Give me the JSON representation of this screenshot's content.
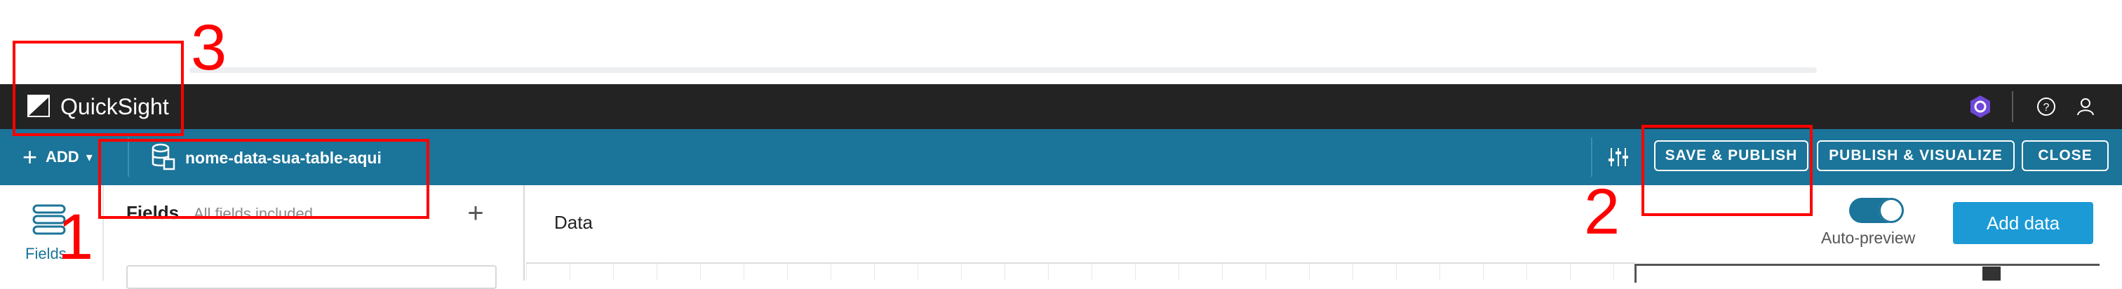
{
  "app": {
    "title": "QuickSight"
  },
  "toolbar": {
    "add_label": "ADD",
    "dataset_name": "nome-data-sua-table-aqui",
    "save_publish": "SAVE & PUBLISH",
    "publish_visualize": "PUBLISH & VISUALIZE",
    "close": "CLOSE"
  },
  "rail": {
    "fields_label": "Fields"
  },
  "fields_panel": {
    "title": "Fields",
    "subtitle": "All fields included"
  },
  "data_area": {
    "title": "Data",
    "auto_preview_label": "Auto-preview",
    "auto_preview_on": true,
    "add_data_button": "Add data"
  },
  "annotations": [
    "1",
    "2",
    "3"
  ],
  "colors": {
    "top_bar": "#232323",
    "toolbar": "#1b7499",
    "accent_button": "#1b9ad6",
    "annotation": "#ff0000"
  },
  "icons": [
    "quicksight-logo-icon",
    "extension-icon",
    "help-icon",
    "user-icon",
    "dataset-icon",
    "filter-settings-icon",
    "fields-list-icon",
    "plus-icon"
  ]
}
